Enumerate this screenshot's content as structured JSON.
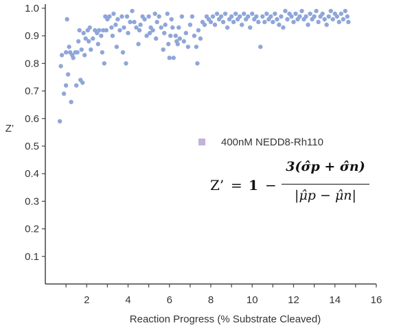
{
  "chart_data": {
    "type": "scatter",
    "title": "",
    "xlabel": "Reaction Progress (% Substrate Cleaved)",
    "ylabel": "Z’",
    "xlim": [
      0,
      16
    ],
    "ylim": [
      0,
      1.0
    ],
    "x_ticks": [
      "2",
      "4",
      "6",
      "8",
      "10",
      "12",
      "14",
      "16"
    ],
    "y_ticks": [
      "0.1",
      "0.2",
      "0.3",
      "0.4",
      "0.5",
      "0.6",
      "0.7",
      "0.8",
      "0.9",
      "1.0"
    ],
    "grid": false,
    "legend_position": "middle-right",
    "series": [
      {
        "name": "400nM NEDD8-Rh110",
        "marker_color": "#8fa6d8",
        "legend_marker_color": "#c3b2d9",
        "points": [
          [
            0.7,
            0.59
          ],
          [
            0.75,
            0.79
          ],
          [
            0.8,
            0.83
          ],
          [
            0.9,
            0.69
          ],
          [
            1.0,
            0.72
          ],
          [
            1.0,
            0.84
          ],
          [
            1.05,
            0.96
          ],
          [
            1.1,
            0.76
          ],
          [
            1.15,
            0.86
          ],
          [
            1.2,
            0.84
          ],
          [
            1.25,
            0.66
          ],
          [
            1.3,
            0.83
          ],
          [
            1.35,
            0.82
          ],
          [
            1.45,
            0.84
          ],
          [
            1.5,
            0.72
          ],
          [
            1.55,
            0.84
          ],
          [
            1.6,
            0.88
          ],
          [
            1.65,
            0.92
          ],
          [
            1.7,
            0.74
          ],
          [
            1.75,
            0.85
          ],
          [
            1.8,
            0.73
          ],
          [
            1.85,
            0.91
          ],
          [
            1.9,
            0.83
          ],
          [
            1.95,
            0.89
          ],
          [
            2.05,
            0.92
          ],
          [
            2.1,
            0.88
          ],
          [
            2.15,
            0.93
          ],
          [
            2.2,
            0.85
          ],
          [
            2.3,
            0.89
          ],
          [
            2.4,
            0.92
          ],
          [
            2.5,
            0.91
          ],
          [
            2.55,
            0.87
          ],
          [
            2.6,
            0.92
          ],
          [
            2.7,
            0.9
          ],
          [
            2.75,
            0.84
          ],
          [
            2.8,
            0.92
          ],
          [
            2.85,
            0.8
          ],
          [
            2.9,
            0.97
          ],
          [
            2.95,
            0.92
          ],
          [
            3.0,
            0.96
          ],
          [
            3.1,
            0.97
          ],
          [
            3.2,
            0.93
          ],
          [
            3.25,
            0.9
          ],
          [
            3.3,
            0.98
          ],
          [
            3.4,
            0.94
          ],
          [
            3.45,
            0.86
          ],
          [
            3.5,
            0.96
          ],
          [
            3.6,
            0.92
          ],
          [
            3.7,
            0.97
          ],
          [
            3.75,
            0.84
          ],
          [
            3.8,
            0.93
          ],
          [
            3.9,
            0.8
          ],
          [
            3.95,
            0.97
          ],
          [
            4.0,
            0.91
          ],
          [
            4.1,
            0.95
          ],
          [
            4.2,
            0.99
          ],
          [
            4.3,
            0.95
          ],
          [
            4.4,
            0.93
          ],
          [
            4.5,
            0.87
          ],
          [
            4.55,
            0.92
          ],
          [
            4.6,
            0.94
          ],
          [
            4.7,
            0.97
          ],
          [
            4.8,
            0.96
          ],
          [
            4.9,
            0.9
          ],
          [
            5.0,
            0.97
          ],
          [
            5.05,
            0.91
          ],
          [
            5.1,
            0.93
          ],
          [
            5.2,
            0.92
          ],
          [
            5.3,
            0.98
          ],
          [
            5.35,
            0.89
          ],
          [
            5.4,
            0.95
          ],
          [
            5.5,
            0.97
          ],
          [
            5.6,
            0.93
          ],
          [
            5.7,
            0.85
          ],
          [
            5.75,
            0.91
          ],
          [
            5.8,
            0.94
          ],
          [
            5.9,
            0.98
          ],
          [
            5.95,
            0.87
          ],
          [
            6.0,
            0.82
          ],
          [
            6.05,
            0.9
          ],
          [
            6.1,
            0.96
          ],
          [
            6.15,
            0.93
          ],
          [
            6.2,
            0.82
          ],
          [
            6.3,
            0.9
          ],
          [
            6.35,
            0.88
          ],
          [
            6.4,
            0.87
          ],
          [
            6.45,
            0.93
          ],
          [
            6.5,
            0.89
          ],
          [
            6.6,
            0.97
          ],
          [
            6.7,
            0.88
          ],
          [
            6.8,
            0.91
          ],
          [
            6.9,
            0.86
          ],
          [
            7.0,
            0.94
          ],
          [
            7.1,
            0.97
          ],
          [
            7.2,
            0.9
          ],
          [
            7.3,
            0.86
          ],
          [
            7.35,
            0.8
          ],
          [
            7.4,
            0.92
          ],
          [
            7.5,
            0.89
          ],
          [
            7.6,
            0.95
          ],
          [
            7.7,
            0.94
          ],
          [
            7.8,
            0.97
          ],
          [
            7.9,
            0.96
          ],
          [
            8.0,
            0.95
          ],
          [
            8.1,
            0.97
          ],
          [
            8.2,
            0.94
          ],
          [
            8.3,
            0.98
          ],
          [
            8.4,
            0.96
          ],
          [
            8.5,
            0.97
          ],
          [
            8.6,
            0.95
          ],
          [
            8.7,
            0.98
          ],
          [
            8.8,
            0.93
          ],
          [
            8.9,
            0.96
          ],
          [
            9.0,
            0.97
          ],
          [
            9.1,
            0.95
          ],
          [
            9.2,
            0.98
          ],
          [
            9.3,
            0.96
          ],
          [
            9.4,
            0.97
          ],
          [
            9.5,
            0.94
          ],
          [
            9.6,
            0.98
          ],
          [
            9.7,
            0.96
          ],
          [
            9.8,
            0.97
          ],
          [
            9.9,
            0.93
          ],
          [
            10.0,
            0.98
          ],
          [
            10.1,
            0.96
          ],
          [
            10.2,
            0.97
          ],
          [
            10.3,
            0.95
          ],
          [
            10.4,
            0.86
          ],
          [
            10.5,
            0.97
          ],
          [
            10.6,
            0.95
          ],
          [
            10.7,
            0.98
          ],
          [
            10.8,
            0.96
          ],
          [
            10.9,
            0.97
          ],
          [
            11.0,
            0.95
          ],
          [
            11.1,
            0.98
          ],
          [
            11.2,
            0.96
          ],
          [
            11.3,
            0.94
          ],
          [
            11.4,
            0.97
          ],
          [
            11.5,
            0.93
          ],
          [
            11.6,
            0.99
          ],
          [
            11.7,
            0.96
          ],
          [
            11.8,
            0.98
          ],
          [
            11.9,
            0.97
          ],
          [
            12.0,
            0.95
          ],
          [
            12.1,
            0.98
          ],
          [
            12.2,
            0.96
          ],
          [
            12.3,
            0.97
          ],
          [
            12.4,
            0.99
          ],
          [
            12.5,
            0.96
          ],
          [
            12.6,
            0.97
          ],
          [
            12.7,
            0.94
          ],
          [
            12.8,
            0.98
          ],
          [
            12.9,
            0.96
          ],
          [
            13.0,
            0.97
          ],
          [
            13.1,
            0.99
          ],
          [
            13.2,
            0.95
          ],
          [
            13.3,
            0.97
          ],
          [
            13.4,
            0.98
          ],
          [
            13.5,
            0.96
          ],
          [
            13.6,
            0.94
          ],
          [
            13.7,
            0.97
          ],
          [
            13.8,
            0.99
          ],
          [
            13.9,
            0.96
          ],
          [
            14.0,
            0.98
          ],
          [
            14.1,
            0.97
          ],
          [
            14.2,
            0.95
          ],
          [
            14.3,
            0.98
          ],
          [
            14.4,
            0.96
          ],
          [
            14.5,
            0.99
          ],
          [
            14.6,
            0.97
          ],
          [
            14.65,
            0.95
          ]
        ]
      }
    ],
    "annotation": {
      "lhs": "Z’",
      "equals": "=",
      "one": "1",
      "minus": "−",
      "numerator": "3(σ̂p + σ̂n)",
      "denominator": "|μ̂p − μ̂n|"
    }
  }
}
